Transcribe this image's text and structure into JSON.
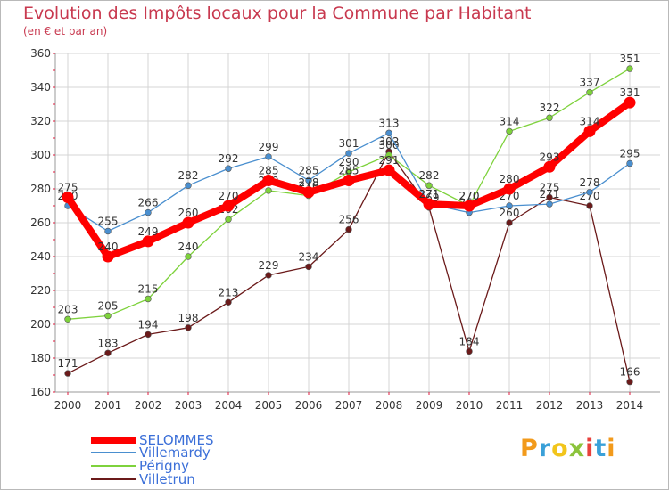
{
  "title": "Evolution des Impôts locaux pour la Commune par Habitant",
  "subtitle": "(en € et par an)",
  "logo_text": "Proxiti",
  "colors": {
    "title": "#c8394f",
    "axis": "#e11a3c",
    "grid": "#d4d4d4",
    "tick_text": "#333333",
    "label_text": "#333333"
  },
  "chart_data": {
    "type": "line",
    "title": "Evolution des Impôts locaux pour la Commune par Habitant",
    "subtitle": "(en € et par an)",
    "x": [
      "2000",
      "2001",
      "2002",
      "2003",
      "2004",
      "2005",
      "2006",
      "2007",
      "2008",
      "2009",
      "2010",
      "2011",
      "2012",
      "2013",
      "2014"
    ],
    "ylim": [
      160,
      360
    ],
    "yticks": [
      160,
      180,
      200,
      220,
      240,
      260,
      280,
      300,
      320,
      340,
      360
    ],
    "grid": true,
    "legend": "bottom-left",
    "series": [
      {
        "name": "Villetrun",
        "color": "#6b1a1a",
        "values": [
          171,
          183,
          194,
          198,
          213,
          229,
          234,
          256,
          302,
          269,
          184,
          260,
          275,
          270,
          166
        ]
      },
      {
        "name": "Périgny",
        "color": "#7ed23c",
        "values": [
          203,
          205,
          215,
          240,
          262,
          279,
          276,
          290,
          300,
          282,
          270,
          314,
          322,
          337,
          351
        ]
      },
      {
        "name": "Villemardy",
        "color": "#4a8fcf",
        "values": [
          270,
          255,
          266,
          282,
          292,
          299,
          285,
          301,
          313,
          271,
          266,
          270,
          271,
          278,
          295
        ]
      },
      {
        "name": "SELOMMES",
        "color": "#ff0000",
        "values": [
          275,
          240,
          249,
          260,
          270,
          285,
          278,
          285,
          291,
          271,
          270,
          280,
          293,
          314,
          331
        ]
      }
    ],
    "data_labels": {
      "Villetrun": [
        "171",
        "183",
        "194",
        "198",
        "213",
        "229",
        "234",
        "256",
        "302",
        "269",
        "184",
        "260",
        "275",
        "270",
        "166"
      ],
      "Périgny": [
        "203",
        "205",
        "215",
        "240",
        "262",
        "279",
        "276",
        "290",
        "300",
        "282",
        "270",
        "314",
        "322",
        "337",
        "351"
      ],
      "Villemardy": [
        "270",
        "255",
        "266",
        "282",
        "292",
        "299",
        "285",
        "301",
        "313",
        "271",
        "266",
        "270",
        "271",
        "278",
        "295"
      ],
      "SELOMMES": [
        "275",
        "240",
        "249",
        "260",
        "270",
        "285",
        "278",
        "285",
        "291",
        "271",
        "270",
        "280",
        "293",
        "314",
        "331"
      ]
    }
  },
  "legend_items": [
    {
      "name": "SELOMMES",
      "color": "#ff0000"
    },
    {
      "name": "Villemardy",
      "color": "#4a8fcf"
    },
    {
      "name": "Périgny",
      "color": "#7ed23c"
    },
    {
      "name": "Villetrun",
      "color": "#6b1a1a"
    }
  ]
}
